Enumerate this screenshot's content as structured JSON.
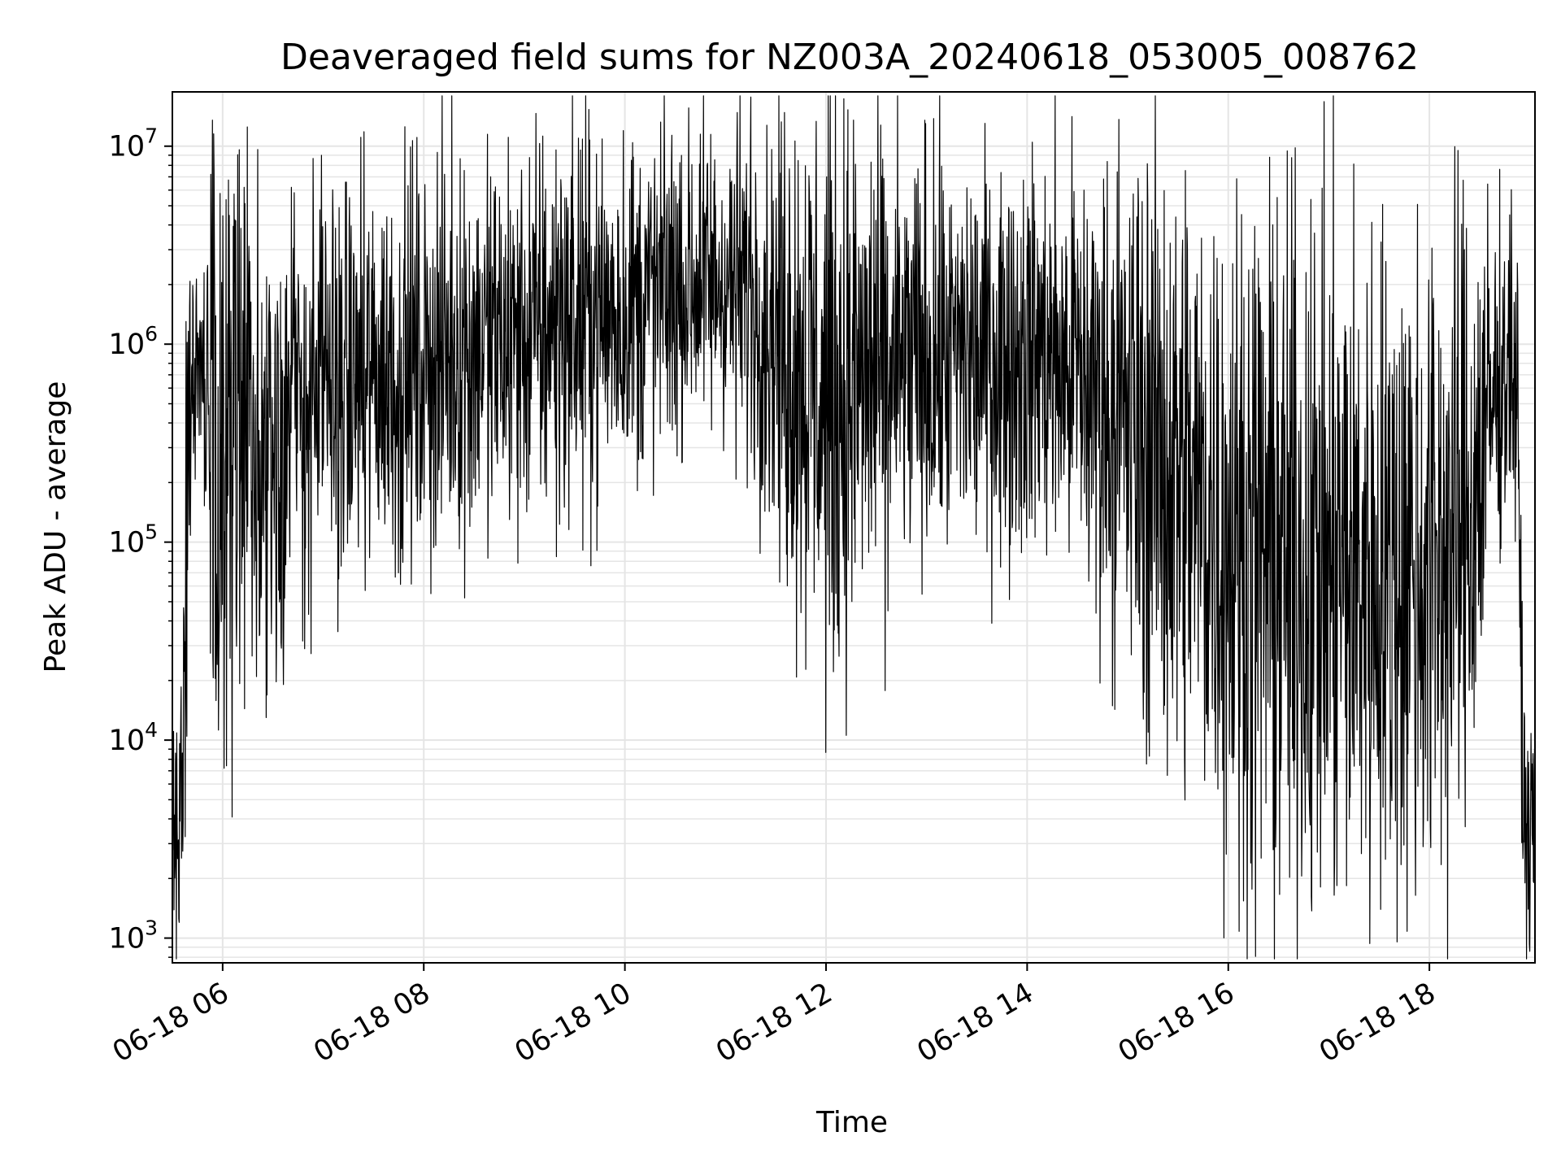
{
  "chart_data": {
    "type": "line",
    "title": "Deaveraged field sums for NZ003A_20240618_053005_008762",
    "xlabel": "Time",
    "ylabel": "Peak ADU - average",
    "yscale": "log",
    "grid": true,
    "legend": "none",
    "line_color": "#000000",
    "grid_color": "#e5e5e5",
    "xlim": [
      "06-18 05:30",
      "06-18 19:03"
    ],
    "ylim": [
      750,
      18800000
    ],
    "x_ticks": [
      {
        "label": "06-18 06",
        "value": "06-18 06:00"
      },
      {
        "label": "06-18 08",
        "value": "06-18 08:00"
      },
      {
        "label": "06-18 10",
        "value": "06-18 10:00"
      },
      {
        "label": "06-18 12",
        "value": "06-18 12:00"
      },
      {
        "label": "06-18 14",
        "value": "06-18 14:00"
      },
      {
        "label": "06-18 16",
        "value": "06-18 16:00"
      },
      {
        "label": "06-18 18",
        "value": "06-18 18:00"
      }
    ],
    "y_ticks": [
      {
        "base": "10",
        "exp": "3",
        "value": 1000
      },
      {
        "base": "10",
        "exp": "4",
        "value": 10000
      },
      {
        "base": "10",
        "exp": "5",
        "value": 100000
      },
      {
        "base": "10",
        "exp": "6",
        "value": 1000000
      },
      {
        "base": "10",
        "exp": "7",
        "value": 10000000
      }
    ],
    "series": [
      {
        "envelope": {
          "x": [
            "06-18 05:30",
            "06-18 05:33",
            "06-18 05:36",
            "06-18 05:39",
            "06-18 05:42",
            "06-18 05:45",
            "06-18 05:48",
            "06-18 05:51",
            "06-18 05:54",
            "06-18 05:58",
            "06-18 06:05",
            "06-18 06:15",
            "06-18 06:30",
            "06-18 06:45",
            "06-18 07:00",
            "06-18 07:15",
            "06-18 07:30",
            "06-18 07:45",
            "06-18 08:00",
            "06-18 08:15",
            "06-18 08:30",
            "06-18 08:45",
            "06-18 09:00",
            "06-18 09:15",
            "06-18 09:30",
            "06-18 09:45",
            "06-18 10:00",
            "06-18 10:15",
            "06-18 10:30",
            "06-18 10:45",
            "06-18 11:00",
            "06-18 11:15",
            "06-18 11:30",
            "06-18 11:45",
            "06-18 12:00",
            "06-18 12:15",
            "06-18 12:30",
            "06-18 12:45",
            "06-18 13:00",
            "06-18 13:15",
            "06-18 13:30",
            "06-18 13:45",
            "06-18 14:00",
            "06-18 14:15",
            "06-18 14:30",
            "06-18 14:45",
            "06-18 15:00",
            "06-18 15:15",
            "06-18 15:30",
            "06-18 15:45",
            "06-18 16:00",
            "06-18 16:15",
            "06-18 16:30",
            "06-18 16:45",
            "06-18 17:00",
            "06-18 17:15",
            "06-18 17:30",
            "06-18 17:45",
            "06-18 18:00",
            "06-18 18:15",
            "06-18 18:25",
            "06-18 18:35",
            "06-18 18:45",
            "06-18 18:52",
            "06-18 18:56",
            "06-18 19:00",
            "06-18 19:03"
          ],
          "mid": [
            3500,
            3500,
            5000,
            200000,
            600000,
            900000,
            1000000,
            700000,
            450000,
            350000,
            300000,
            300000,
            350000,
            450000,
            600000,
            650000,
            700000,
            750000,
            800000,
            900000,
            950000,
            1000000,
            1100000,
            1200000,
            1300000,
            1400000,
            1500000,
            1700000,
            1900000,
            2000000,
            2100000,
            1800000,
            1200000,
            800000,
            500000,
            600000,
            700000,
            750000,
            800000,
            850000,
            850000,
            900000,
            900000,
            850000,
            700000,
            550000,
            400000,
            300000,
            220000,
            160000,
            110000,
            90000,
            80000,
            75000,
            70000,
            72000,
            72000,
            75000,
            80000,
            100000,
            150000,
            400000,
            800000,
            700000,
            5000,
            3500,
            3500
          ],
          "spread": [
            0.35,
            0.35,
            0.35,
            0.7,
            0.35,
            0.3,
            0.3,
            0.6,
            0.85,
            0.85,
            0.85,
            0.8,
            0.7,
            0.6,
            0.5,
            0.5,
            0.5,
            0.5,
            0.5,
            0.5,
            0.5,
            0.5,
            0.5,
            0.5,
            0.5,
            0.45,
            0.45,
            0.45,
            0.4,
            0.4,
            0.4,
            0.45,
            0.55,
            0.7,
            0.75,
            0.7,
            0.6,
            0.55,
            0.55,
            0.5,
            0.5,
            0.5,
            0.5,
            0.5,
            0.55,
            0.6,
            0.7,
            0.75,
            0.8,
            0.85,
            0.85,
            0.9,
            0.9,
            0.9,
            0.9,
            0.9,
            0.9,
            0.9,
            0.9,
            0.85,
            0.8,
            0.55,
            0.35,
            0.45,
            0.35,
            0.3,
            0.3
          ]
        },
        "spikes": [
          {
            "x": "06-18 05:34",
            "y": 150000
          },
          {
            "x": "06-18 05:34",
            "y": 1200
          },
          {
            "x": "06-18 05:51",
            "y": 2500000
          },
          {
            "x": "06-18 06:10",
            "y": 9600000
          },
          {
            "x": "06-18 06:08",
            "y": 45000
          },
          {
            "x": "06-18 07:25",
            "y": 57000
          },
          {
            "x": "06-18 07:45",
            "y": 70000
          },
          {
            "x": "06-18 09:22",
            "y": 6000000
          },
          {
            "x": "06-18 10:45",
            "y": 11500000
          },
          {
            "x": "06-18 11:15",
            "y": 9300000
          },
          {
            "x": "06-18 12:05",
            "y": 36000
          },
          {
            "x": "06-18 12:27",
            "y": 8300000
          },
          {
            "x": "06-18 12:37",
            "y": 45000
          },
          {
            "x": "06-18 14:28",
            "y": 5900000
          },
          {
            "x": "06-18 16:45",
            "y": 23000
          },
          {
            "x": "06-18 17:35",
            "y": 23000
          },
          {
            "x": "06-18 18:48",
            "y": 4500000
          },
          {
            "x": "06-18 18:59",
            "y": 1400
          }
        ]
      }
    ]
  }
}
